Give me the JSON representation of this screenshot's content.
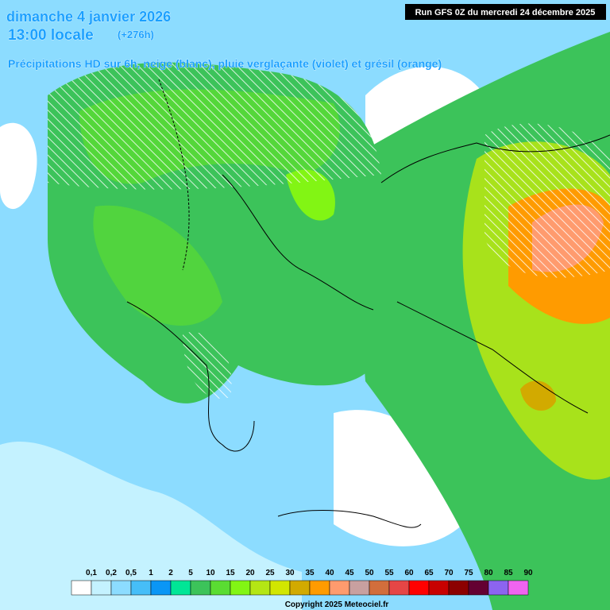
{
  "header": {
    "date": "dimanche 4 janvier 2026",
    "time": "13:00 locale",
    "lead": "(+276h)",
    "subtitle": "Précipitations HD sur 6h, neige (blanc), pluie verglaçante (violet) et grésil (orange)",
    "run": "Run GFS 0Z du mercredi 24 décembre 2025"
  },
  "legend": {
    "items": [
      {
        "label": "0,1",
        "color": "#ffffff"
      },
      {
        "label": "0,2",
        "color": "#c4f2ff"
      },
      {
        "label": "0,5",
        "color": "#8cdcff"
      },
      {
        "label": "1",
        "color": "#46bef8"
      },
      {
        "label": "2",
        "color": "#0a96f5"
      },
      {
        "label": "5",
        "color": "#00e696"
      },
      {
        "label": "10",
        "color": "#3cc35a"
      },
      {
        "label": "15",
        "color": "#5adc32"
      },
      {
        "label": "20",
        "color": "#82f514"
      },
      {
        "label": "25",
        "color": "#b4e614"
      },
      {
        "label": "30",
        "color": "#d2e600"
      },
      {
        "label": "35",
        "color": "#d2aa00"
      },
      {
        "label": "40",
        "color": "#ff9b00"
      },
      {
        "label": "45",
        "color": "#ff9b6e"
      },
      {
        "label": "50",
        "color": "#c8a0a0"
      },
      {
        "label": "55",
        "color": "#d26e3c"
      },
      {
        "label": "60",
        "color": "#e64646"
      },
      {
        "label": "65",
        "color": "#ff0000"
      },
      {
        "label": "70",
        "color": "#c80000"
      },
      {
        "label": "75",
        "color": "#8c0000"
      },
      {
        "label": "80",
        "color": "#640032"
      },
      {
        "label": "85",
        "color": "#8c64f0"
      },
      {
        "label": "90",
        "color": "#f064f0"
      }
    ]
  },
  "footer": {
    "copyright": "Copyright 2025 Meteociel.fr"
  }
}
